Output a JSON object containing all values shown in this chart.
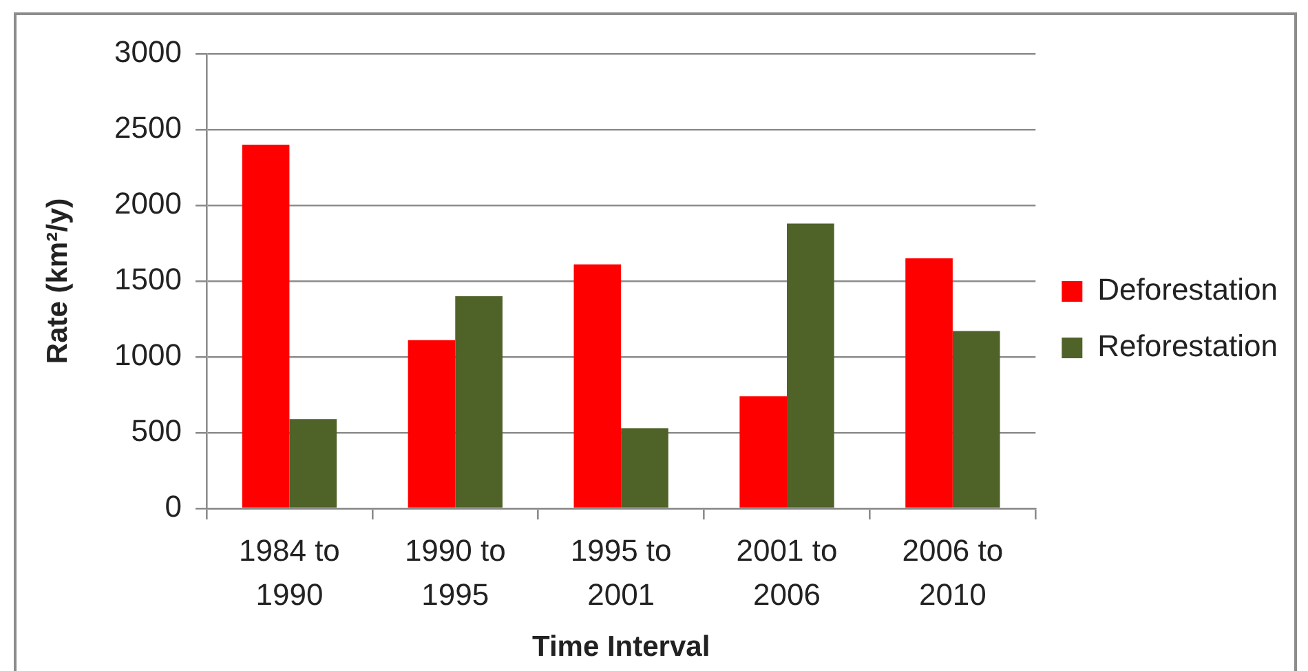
{
  "chart_data": {
    "type": "bar",
    "xlabel": "Time Interval",
    "ylabel": "Rate (km²/y)",
    "categories": [
      "1984 to 1990",
      "1990 to 1995",
      "1995 to 2001",
      "2001 to 2006",
      "2006 to 2010"
    ],
    "series": [
      {
        "name": "Deforestation",
        "color": "#ff0000",
        "values": [
          2400,
          1110,
          1610,
          740,
          1650
        ]
      },
      {
        "name": "Reforestation",
        "color": "#4f6228",
        "values": [
          590,
          1400,
          530,
          1880,
          1170
        ]
      }
    ],
    "ylim": [
      0,
      3000
    ],
    "yticks": [
      0,
      500,
      1000,
      1500,
      2000,
      2500,
      3000
    ],
    "grid": "y",
    "legend": "right"
  }
}
